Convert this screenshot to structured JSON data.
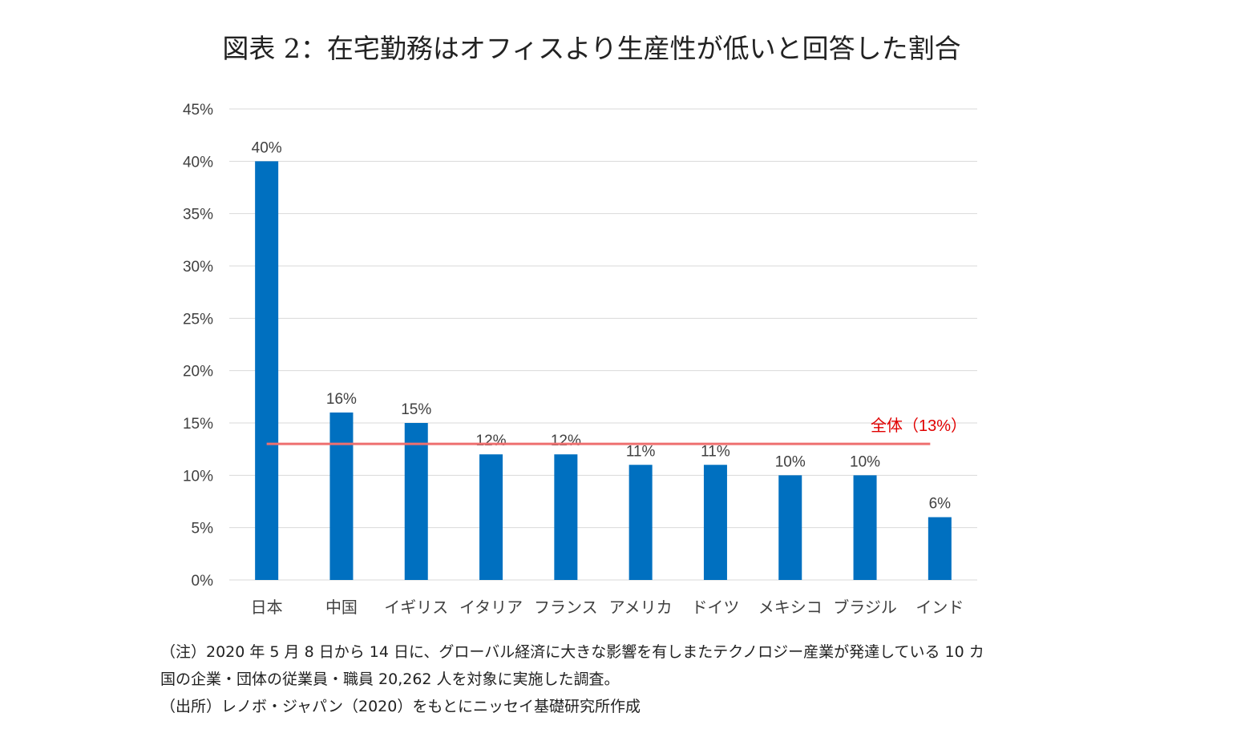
{
  "title": "図表 2：在宅勤務はオフィスより生産性が低いと回答した割合",
  "colors": {
    "bar": "#0070C0",
    "reference_line": "#EE6F6F",
    "reference_label": "#E00000",
    "text": "#404040",
    "grid": "#D9D9D9"
  },
  "chart_data": {
    "type": "bar",
    "categories": [
      "日本",
      "中国",
      "イギリス",
      "イタリア",
      "フランス",
      "アメリカ",
      "ドイツ",
      "メキシコ",
      "ブラジル",
      "インド"
    ],
    "values": [
      40,
      16,
      15,
      12,
      12,
      11,
      11,
      10,
      10,
      6
    ],
    "data_labels": [
      "40%",
      "16%",
      "15%",
      "12%",
      "12%",
      "11%",
      "11%",
      "10%",
      "10%",
      "6%"
    ],
    "ylim": [
      0,
      45
    ],
    "yticks": [
      0,
      5,
      10,
      15,
      20,
      25,
      30,
      35,
      40,
      45
    ],
    "ytick_labels": [
      "0%",
      "5%",
      "10%",
      "15%",
      "20%",
      "25%",
      "30%",
      "35%",
      "40%",
      "45%"
    ],
    "grid": true,
    "reference_line": {
      "value": 13,
      "label": "全体（13%）"
    }
  },
  "notes": {
    "line1": "（注）2020 年 5 月 8 日から 14 日に、グローバル経済に大きな影響を有しまたテクノロジー産業が発達している 10 カ",
    "line2": "国の企業・団体の従業員・職員 20,262 人を対象に実施した調査。",
    "line3": "（出所）レノボ・ジャパン（2020）をもとにニッセイ基礎研究所作成"
  }
}
